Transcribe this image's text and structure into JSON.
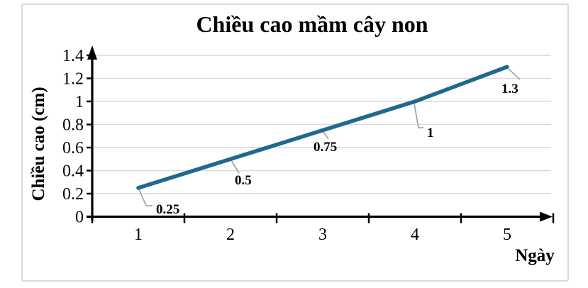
{
  "chart_data": {
    "type": "line",
    "title": "Chiều cao mầm cây non",
    "xlabel": "Ngày",
    "ylabel": "Chiều cao (cm)",
    "categories": [
      "1",
      "2",
      "3",
      "4",
      "5"
    ],
    "series": [
      {
        "values": [
          0.25,
          0.5,
          0.75,
          1,
          1.3
        ]
      }
    ],
    "data_labels": [
      "0.25",
      "0.5",
      "0.75",
      "1",
      "1.3"
    ],
    "ylim": [
      0,
      1.4
    ],
    "ytick_step": 0.2,
    "ytick_labels": [
      "0",
      "0.2",
      "0.4",
      "0.6",
      "0.8",
      "1",
      "1.2",
      "1.4"
    ],
    "grid": "horizontal",
    "legend_position": "none",
    "colors": {
      "line": "#20698C",
      "gridline": "#D9D9D9",
      "leader": "#A6A6A6",
      "axis": "#000000",
      "border": "#D9D9D9",
      "text": "#000000",
      "background": "#FFFFFF"
    }
  }
}
